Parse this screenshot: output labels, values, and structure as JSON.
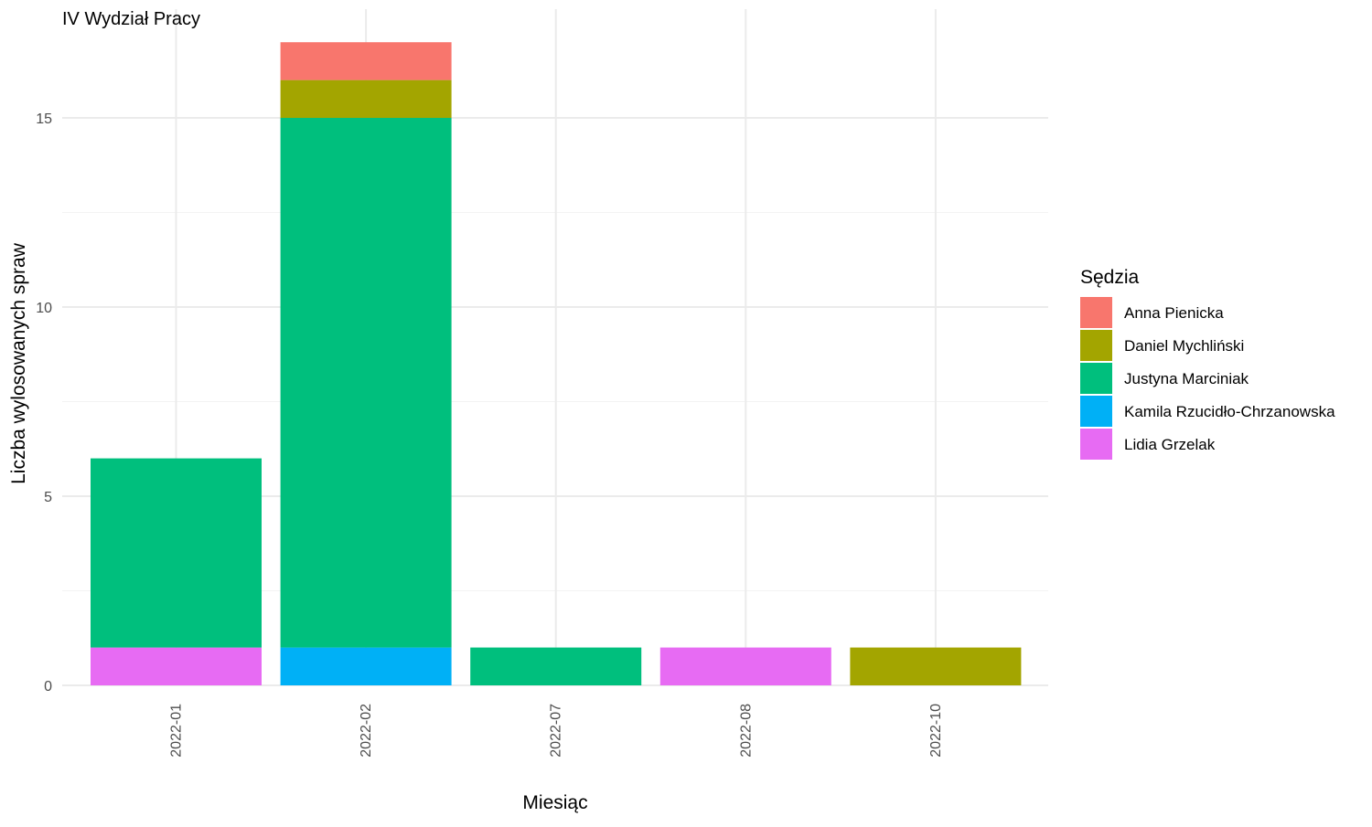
{
  "chart_data": {
    "type": "bar",
    "stacked": true,
    "title": "IV Wydział Pracy",
    "xlabel": "Miesiąc",
    "ylabel": "Liczba wylosowanych spraw",
    "categories": [
      "2022-01",
      "2022-02",
      "2022-07",
      "2022-08",
      "2022-10"
    ],
    "ylim": [
      0,
      17
    ],
    "yticks": [
      0,
      5,
      10,
      15
    ],
    "grid": true,
    "legend": {
      "title": "Sędzia",
      "position": "right"
    },
    "series": [
      {
        "name": "Lidia Grzelak",
        "color": "#E76BF3",
        "values": [
          1,
          0,
          0,
          1,
          0
        ]
      },
      {
        "name": "Kamila Rzucidło-Chrzanowska",
        "color": "#00B0F6",
        "values": [
          0,
          1,
          0,
          0,
          0
        ]
      },
      {
        "name": "Justyna Marciniak",
        "color": "#00BF7D",
        "values": [
          5,
          14,
          1,
          0,
          0
        ]
      },
      {
        "name": "Daniel Mychliński",
        "color": "#A3A500",
        "values": [
          0,
          1,
          0,
          0,
          1
        ]
      },
      {
        "name": "Anna Pienicka",
        "color": "#F8766D",
        "values": [
          0,
          1,
          0,
          0,
          0
        ]
      }
    ],
    "legend_order": [
      "Anna Pienicka",
      "Daniel Mychliński",
      "Justyna Marciniak",
      "Kamila Rzucidło-Chrzanowska",
      "Lidia Grzelak"
    ]
  }
}
